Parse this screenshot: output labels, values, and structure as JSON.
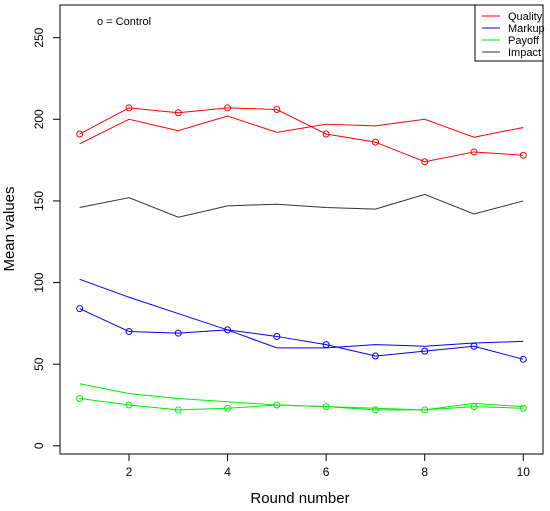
{
  "chart_data": {
    "type": "line",
    "title": "",
    "xlabel": "Round number",
    "ylabel": "Mean values",
    "x": [
      1,
      2,
      3,
      4,
      5,
      6,
      7,
      8,
      9,
      10
    ],
    "xlim": [
      0.6,
      10.4
    ],
    "ylim": [
      -5,
      270
    ],
    "xticks": [
      2,
      4,
      6,
      8,
      10
    ],
    "yticks": [
      0,
      50,
      100,
      150,
      200,
      250
    ],
    "grid": false,
    "legend_position": "top-right",
    "annotation": "o = Control",
    "series": [
      {
        "name": "Quality",
        "key": "quality",
        "color": "#ff0000",
        "values": [
          185,
          200,
          193,
          202,
          192,
          197,
          196,
          200,
          189,
          195
        ],
        "control": [
          191,
          207,
          204,
          207,
          206,
          191,
          186,
          174,
          180,
          178
        ]
      },
      {
        "name": "Markup",
        "key": "markup",
        "color": "#0000ff",
        "values": [
          102,
          91,
          81,
          71,
          60,
          60,
          62,
          61,
          63,
          64
        ],
        "control": [
          84,
          70,
          69,
          71,
          67,
          62,
          55,
          58,
          61,
          53
        ]
      },
      {
        "name": "Payoff",
        "key": "payoff",
        "color": "#00ee00",
        "values": [
          38,
          32,
          29,
          27,
          25,
          24,
          23,
          22,
          26,
          24
        ],
        "control": [
          29,
          25,
          22,
          23,
          25,
          24,
          22,
          22,
          24,
          23
        ]
      },
      {
        "name": "Impact",
        "key": "impact",
        "color": "#333333",
        "values": [
          146,
          152,
          140,
          147,
          148,
          146,
          145,
          154,
          142,
          150
        ],
        "control": null
      }
    ]
  }
}
